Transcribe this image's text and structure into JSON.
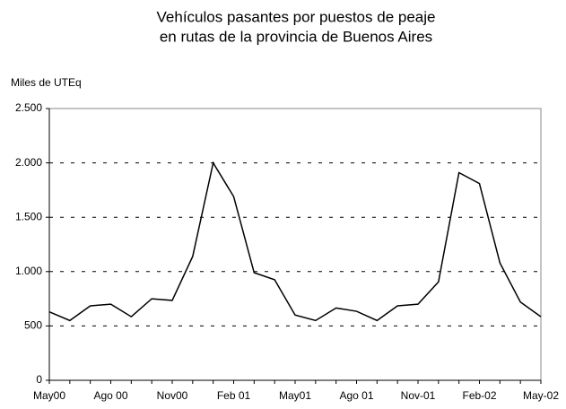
{
  "chart_data": {
    "type": "line",
    "title": [
      "Vehículos pasantes por puestos de peaje",
      "en rutas de la provincia de Buenos Aires"
    ],
    "y_label": "Miles de UTEq",
    "categories": [
      "May00",
      null,
      null,
      "Ago 00",
      null,
      null,
      "Nov00",
      null,
      null,
      "Feb 01",
      null,
      null,
      "May01",
      null,
      null,
      "Ago 01",
      null,
      null,
      "Nov-01",
      null,
      null,
      "Feb-02",
      null,
      null,
      "May-02"
    ],
    "series": [
      {
        "name": "Vehículos",
        "color": "#000000",
        "values": [
          630,
          550,
          685,
          700,
          585,
          750,
          735,
          1140,
          2000,
          1690,
          990,
          925,
          600,
          550,
          665,
          635,
          550,
          685,
          700,
          905,
          1910,
          1810,
          1080,
          720,
          585
        ]
      }
    ],
    "ylim": [
      0,
      2500
    ],
    "yticks": [
      0,
      500,
      {
        "value": 1000,
        "label": "1.000"
      },
      {
        "value": 1500,
        "label": "1.500"
      },
      {
        "value": 2000,
        "label": "2.000"
      },
      {
        "value": 2500,
        "label": "2.500"
      }
    ],
    "grid": true
  }
}
